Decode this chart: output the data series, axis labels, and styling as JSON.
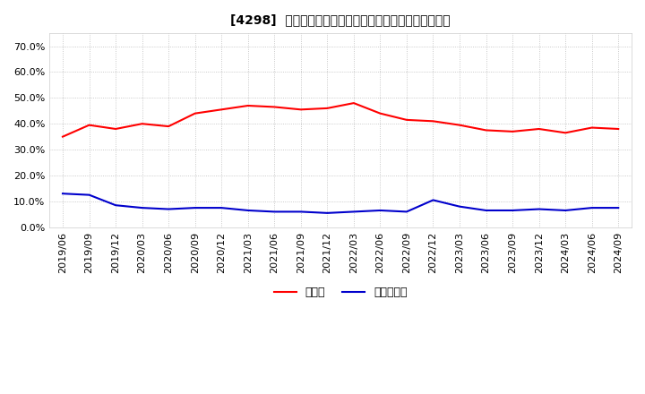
{
  "title": "[4298]  現預金、有利子負債の総資産に対する比率の推移",
  "legend_labels": [
    "現預金",
    "有利子負債"
  ],
  "line_colors": [
    "#ff0000",
    "#0000cc"
  ],
  "background_color": "#ffffff",
  "plot_bg_color": "#ffffff",
  "grid_color": "#bbbbbb",
  "ylim": [
    0.0,
    0.75
  ],
  "yticks": [
    0.0,
    0.1,
    0.2,
    0.3,
    0.4,
    0.5,
    0.6,
    0.7
  ],
  "dates": [
    "2019/06",
    "2019/09",
    "2019/12",
    "2020/03",
    "2020/06",
    "2020/09",
    "2020/12",
    "2021/03",
    "2021/06",
    "2021/09",
    "2021/12",
    "2022/03",
    "2022/06",
    "2022/09",
    "2022/12",
    "2023/03",
    "2023/06",
    "2023/09",
    "2023/12",
    "2024/03",
    "2024/06",
    "2024/09"
  ],
  "cash": [
    0.35,
    0.395,
    0.38,
    0.4,
    0.39,
    0.44,
    0.455,
    0.47,
    0.465,
    0.455,
    0.46,
    0.48,
    0.44,
    0.415,
    0.41,
    0.395,
    0.375,
    0.37,
    0.38,
    0.365,
    0.385,
    0.38
  ],
  "debt": [
    0.13,
    0.125,
    0.085,
    0.075,
    0.07,
    0.075,
    0.075,
    0.065,
    0.06,
    0.06,
    0.055,
    0.06,
    0.065,
    0.06,
    0.105,
    0.08,
    0.065,
    0.065,
    0.07,
    0.065,
    0.075,
    0.075
  ]
}
